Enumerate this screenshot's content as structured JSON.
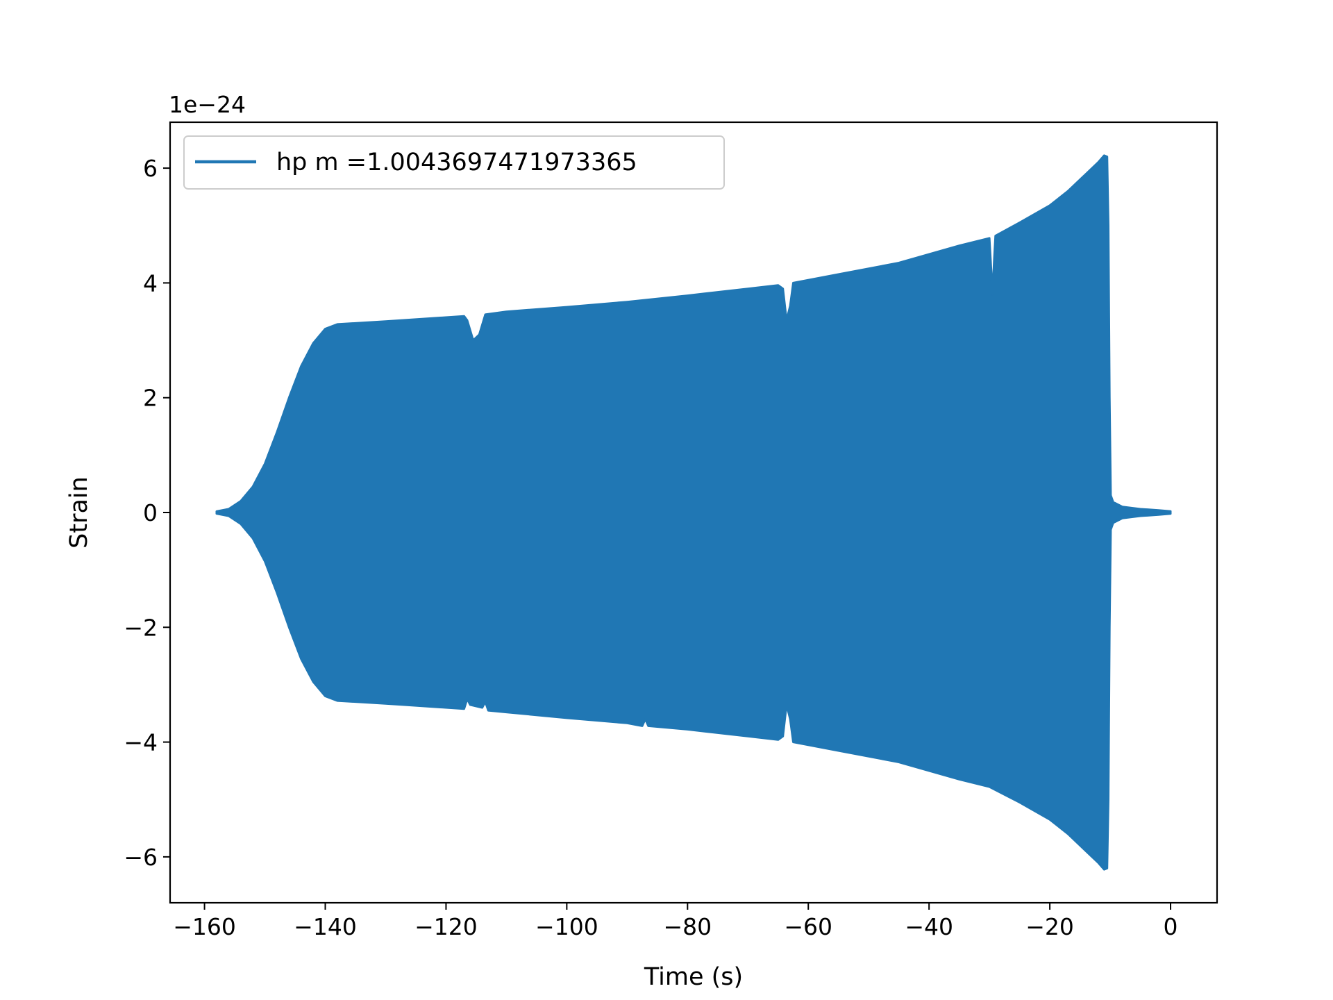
{
  "chart_data": {
    "type": "line",
    "xlabel": "Time (s)",
    "ylabel": "Strain",
    "offset_text": "1e−24",
    "y_scale_factor": 1e-24,
    "xlim": [
      -165.7,
      7.7
    ],
    "ylim": [
      -6.8,
      6.8
    ],
    "x_ticks": [
      -160,
      -140,
      -120,
      -100,
      -80,
      -60,
      -40,
      -20,
      0
    ],
    "x_tick_labels": [
      "−160",
      "−140",
      "−120",
      "−100",
      "−80",
      "−60",
      "−40",
      "−20",
      "0"
    ],
    "y_ticks": [
      6,
      4,
      2,
      0,
      -2,
      -4,
      -6
    ],
    "y_tick_labels": [
      "6",
      "4",
      "2",
      "0",
      "−2",
      "−4",
      "−6"
    ],
    "grid": false,
    "legend_position": "upper left",
    "series": [
      {
        "name": "hp m =1.0043697471973365",
        "color": "#2077b4",
        "envelope_upper": [
          [
            -158,
            0.02
          ],
          [
            -156,
            0.06
          ],
          [
            -154,
            0.2
          ],
          [
            -152,
            0.45
          ],
          [
            -150,
            0.85
          ],
          [
            -148,
            1.4
          ],
          [
            -146,
            2.0
          ],
          [
            -144,
            2.55
          ],
          [
            -142,
            2.95
          ],
          [
            -140,
            3.2
          ],
          [
            -138,
            3.28
          ],
          [
            -130,
            3.33
          ],
          [
            -120,
            3.4
          ],
          [
            -117,
            3.42
          ],
          [
            -116.5,
            3.35
          ],
          [
            -115.5,
            3.0
          ],
          [
            -114.5,
            3.1
          ],
          [
            -113.5,
            3.45
          ],
          [
            -110,
            3.5
          ],
          [
            -100,
            3.58
          ],
          [
            -90,
            3.67
          ],
          [
            -80,
            3.78
          ],
          [
            -70,
            3.9
          ],
          [
            -65,
            3.96
          ],
          [
            -64.2,
            3.9
          ],
          [
            -63.6,
            3.35
          ],
          [
            -63,
            3.6
          ],
          [
            -62.5,
            4.0
          ],
          [
            -55,
            4.15
          ],
          [
            -45,
            4.35
          ],
          [
            -40,
            4.5
          ],
          [
            -35,
            4.65
          ],
          [
            -30,
            4.78
          ],
          [
            -29.8,
            4.4
          ],
          [
            -29.5,
            3.8
          ],
          [
            -29.2,
            4.45
          ],
          [
            -29,
            4.82
          ],
          [
            -25,
            5.05
          ],
          [
            -20,
            5.35
          ],
          [
            -17,
            5.6
          ],
          [
            -14,
            5.9
          ],
          [
            -12,
            6.1
          ],
          [
            -11,
            6.22
          ],
          [
            -10.5,
            6.2
          ],
          [
            -10.3,
            5.0
          ],
          [
            -10.1,
            2.0
          ],
          [
            -9.9,
            0.3
          ],
          [
            -9.5,
            0.18
          ],
          [
            -8,
            0.1
          ],
          [
            -5,
            0.06
          ],
          [
            -2,
            0.04
          ],
          [
            0,
            0.02
          ]
        ],
        "envelope_lower": [
          [
            -158,
            -0.02
          ],
          [
            -156,
            -0.06
          ],
          [
            -154,
            -0.2
          ],
          [
            -152,
            -0.45
          ],
          [
            -150,
            -0.85
          ],
          [
            -148,
            -1.4
          ],
          [
            -146,
            -2.0
          ],
          [
            -144,
            -2.55
          ],
          [
            -142,
            -2.95
          ],
          [
            -140,
            -3.2
          ],
          [
            -138,
            -3.28
          ],
          [
            -130,
            -3.33
          ],
          [
            -120,
            -3.4
          ],
          [
            -117,
            -3.42
          ],
          [
            -116.5,
            -3.25
          ],
          [
            -116,
            -3.35
          ],
          [
            -114,
            -3.4
          ],
          [
            -113.5,
            -3.3
          ],
          [
            -113,
            -3.45
          ],
          [
            -110,
            -3.48
          ],
          [
            -100,
            -3.58
          ],
          [
            -90,
            -3.67
          ],
          [
            -87.5,
            -3.72
          ],
          [
            -87,
            -3.6
          ],
          [
            -86.5,
            -3.72
          ],
          [
            -80,
            -3.78
          ],
          [
            -70,
            -3.9
          ],
          [
            -65,
            -3.96
          ],
          [
            -64.2,
            -3.9
          ],
          [
            -63.6,
            -3.35
          ],
          [
            -63,
            -3.6
          ],
          [
            -62.5,
            -4.0
          ],
          [
            -55,
            -4.15
          ],
          [
            -45,
            -4.35
          ],
          [
            -40,
            -4.5
          ],
          [
            -35,
            -4.65
          ],
          [
            -30,
            -4.78
          ],
          [
            -25,
            -5.05
          ],
          [
            -20,
            -5.35
          ],
          [
            -17,
            -5.6
          ],
          [
            -14,
            -5.9
          ],
          [
            -12,
            -6.1
          ],
          [
            -11,
            -6.22
          ],
          [
            -10.5,
            -6.2
          ],
          [
            -10.3,
            -5.0
          ],
          [
            -10.1,
            -2.0
          ],
          [
            -9.9,
            -0.3
          ],
          [
            -9.5,
            -0.18
          ],
          [
            -8,
            -0.1
          ],
          [
            -5,
            -0.06
          ],
          [
            -2,
            -0.04
          ],
          [
            0,
            -0.02
          ]
        ]
      }
    ]
  }
}
